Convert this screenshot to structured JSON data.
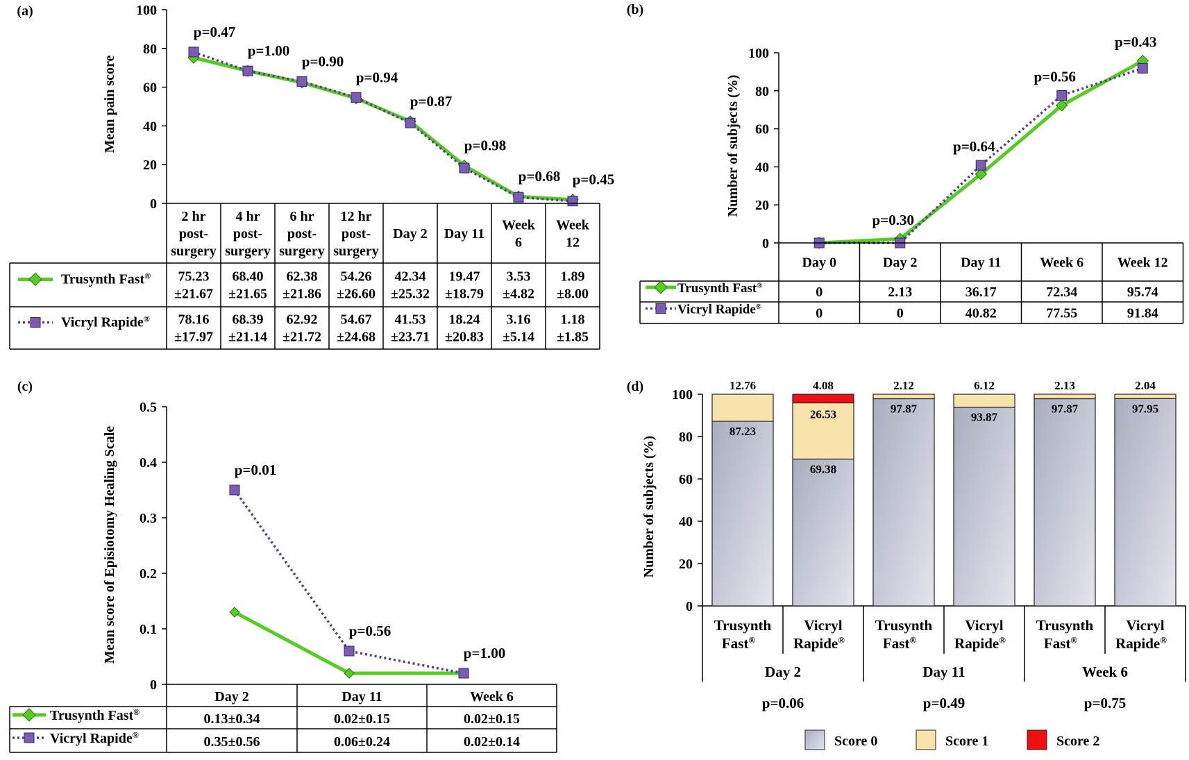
{
  "colors": {
    "trusynth": "#55cc22",
    "vicryl": "#5a3d91",
    "score0": "#b9bccb",
    "score1": "#f9e3ad",
    "score2": "#ee1111"
  },
  "chart_data": [
    {
      "type": "line",
      "panel_label": "(a)",
      "ylabel": "Mean pain score",
      "ylim": [
        0,
        100
      ],
      "yticks": [
        "0",
        "20",
        "40",
        "60",
        "80",
        "100"
      ],
      "categories": [
        "2 hr post-surgery",
        "4 hr post-surgery",
        "6 hr post-surgery",
        "12 hr post-surgery",
        "Day 2",
        "Day 11",
        "Week 6",
        "Week 12"
      ],
      "category_lines": [
        [
          "2 hr",
          "post-",
          "surgery"
        ],
        [
          "4 hr",
          "post-",
          "surgery"
        ],
        [
          "6 hr",
          "post-",
          "surgery"
        ],
        [
          "12 hr",
          "post-",
          "surgery"
        ],
        [
          "Day 2"
        ],
        [
          "Day 11"
        ],
        [
          "Week",
          "6"
        ],
        [
          "Week",
          "12"
        ]
      ],
      "pvalues": [
        "p=0.47",
        "p=1.00",
        "p=0.90",
        "p=0.94",
        "p=0.87",
        "p=0.98",
        "p=0.68",
        "p=0.45"
      ],
      "series": [
        {
          "name": "Trusynth Fast®",
          "values": [
            75.23,
            68.4,
            62.38,
            54.26,
            42.34,
            19.47,
            3.53,
            1.89
          ],
          "table": [
            [
              "75.23",
              "±21.67"
            ],
            [
              "68.40",
              "±21.65"
            ],
            [
              "62.38",
              "±21.86"
            ],
            [
              "54.26",
              "±26.60"
            ],
            [
              "42.34",
              "±25.32"
            ],
            [
              "19.47",
              "±18.79"
            ],
            [
              "3.53",
              "±4.82"
            ],
            [
              "1.89",
              "±8.00"
            ]
          ]
        },
        {
          "name": "Vicryl Rapide®",
          "values": [
            78.16,
            68.39,
            62.92,
            54.67,
            41.53,
            18.24,
            3.16,
            1.18
          ],
          "table": [
            [
              "78.16",
              "±17.97"
            ],
            [
              "68.39",
              "±21.14"
            ],
            [
              "62.92",
              "±21.72"
            ],
            [
              "54.67",
              "±24.68"
            ],
            [
              "41.53",
              "±23.71"
            ],
            [
              "18.24",
              "±20.83"
            ],
            [
              "3.16",
              "±5.14"
            ],
            [
              "1.18",
              "±1.85"
            ]
          ]
        }
      ]
    },
    {
      "type": "line",
      "panel_label": "(b)",
      "ylabel": "Number of subjects (%)",
      "ylim": [
        0,
        100
      ],
      "yticks": [
        "0",
        "20",
        "40",
        "60",
        "80",
        "100"
      ],
      "categories": [
        "Day 0",
        "Day 2",
        "Day 11",
        "Week 6",
        "Week 12"
      ],
      "pvalues": [
        "",
        "p=0.30",
        "p=0.64",
        "p=0.56",
        "p=0.43"
      ],
      "series": [
        {
          "name": "Trusynth Fast®",
          "values": [
            0,
            2.13,
            36.17,
            72.34,
            95.74
          ],
          "table": [
            "0",
            "2.13",
            "36.17",
            "72.34",
            "95.74"
          ]
        },
        {
          "name": "Vicryl Rapide®",
          "values": [
            0,
            0,
            40.82,
            77.55,
            91.84
          ],
          "table": [
            "0",
            "0",
            "40.82",
            "77.55",
            "91.84"
          ]
        }
      ]
    },
    {
      "type": "line",
      "panel_label": "(c)",
      "ylabel": "Mean score of Episiotomy Healing Scale",
      "ylim": [
        0,
        0.5
      ],
      "yticks": [
        "0",
        "0.1",
        "0.2",
        "0.3",
        "0.4",
        "0.5"
      ],
      "categories": [
        "Day 2",
        "Day 11",
        "Week 6"
      ],
      "pvalues": [
        "p=0.01",
        "p=0.56",
        "p=1.00"
      ],
      "series": [
        {
          "name": "Trusynth Fast®",
          "values": [
            0.13,
            0.02,
            0.02
          ],
          "table": [
            "0.13±0.34",
            "0.02±0.15",
            "0.02±0.15"
          ]
        },
        {
          "name": "Vicryl Rapide®",
          "values": [
            0.35,
            0.06,
            0.02
          ],
          "table": [
            "0.35±0.56",
            "0.06±0.24",
            "0.02±0.14"
          ]
        }
      ]
    },
    {
      "type": "bar",
      "stacked": true,
      "panel_label": "(d)",
      "ylabel": "Number of subjects (%)",
      "ylim": [
        0,
        100
      ],
      "yticks": [
        "0",
        "20",
        "40",
        "60",
        "80",
        "100"
      ],
      "bars": [
        {
          "line1": "Trusynth",
          "line2": "Fast®",
          "score0": 87.23,
          "score1": 12.76,
          "score2": 0
        },
        {
          "line1": "Vicryl",
          "line2": "Rapide®",
          "score0": 69.38,
          "score1": 26.53,
          "score2": 4.08
        },
        {
          "line1": "Trusynth",
          "line2": "Fast®",
          "score0": 97.87,
          "score1": 2.12,
          "score2": 0
        },
        {
          "line1": "Vicryl",
          "line2": "Rapide®",
          "score0": 93.87,
          "score1": 6.12,
          "score2": 0
        },
        {
          "line1": "Trusynth",
          "line2": "Fast®",
          "score0": 97.87,
          "score1": 2.13,
          "score2": 0
        },
        {
          "line1": "Vicryl",
          "line2": "Rapide®",
          "score0": 97.95,
          "score1": 2.04,
          "score2": 0
        }
      ],
      "groups": [
        {
          "name": "Day 2",
          "pvalue": "p=0.06"
        },
        {
          "name": "Day 11",
          "pvalue": "p=0.49"
        },
        {
          "name": "Week 6",
          "pvalue": "p=0.75"
        }
      ],
      "legend": [
        "Score 0",
        "Score 1",
        "Score 2"
      ],
      "legend_position": "bottom"
    }
  ]
}
